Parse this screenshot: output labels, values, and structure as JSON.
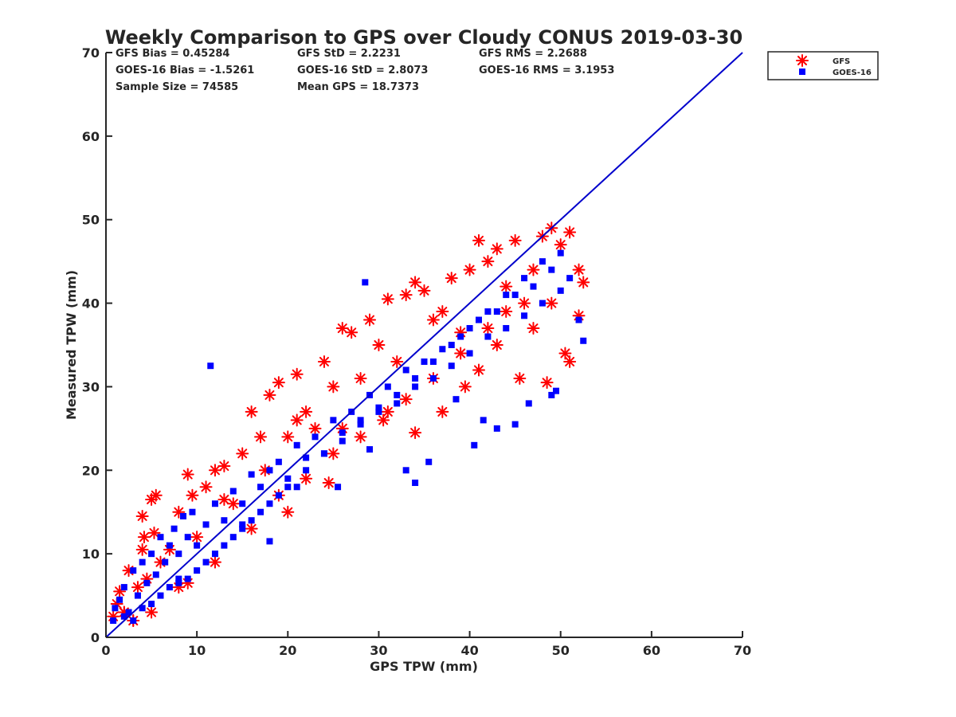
{
  "chart_data": {
    "type": "scatter",
    "title": "Weekly Comparison to GPS over Cloudy CONUS 2019-03-30",
    "xlabel": "GPS TPW (mm)",
    "ylabel": "Measured TPW (mm)",
    "xlim": [
      0,
      70
    ],
    "ylim": [
      0,
      70
    ],
    "x_ticks": [
      "0",
      "10",
      "20",
      "30",
      "40",
      "50",
      "60",
      "70"
    ],
    "y_ticks": [
      "0",
      "10",
      "20",
      "30",
      "40",
      "50",
      "60",
      "70"
    ],
    "grid": false,
    "legend_position": "outside top-right",
    "stats": [
      "GFS Bias = 0.45284",
      "GFS StD = 2.2231",
      "GFS RMS = 2.2688",
      "GOES-16 Bias = -1.5261",
      "GOES-16 StD = 2.8073",
      "GOES-16 RMS = 3.1953",
      "Sample Size = 74585",
      "Mean GPS = 18.7373"
    ],
    "reference_line": {
      "x": [
        0,
        70
      ],
      "y": [
        0,
        70
      ],
      "color": "#0000cc"
    },
    "series": [
      {
        "name": "GFS",
        "marker": "asterisk",
        "color": "#ff0000",
        "x": [
          0.8,
          1.2,
          1.5,
          2.0,
          2.5,
          3.0,
          3.5,
          4.0,
          4.2,
          4.5,
          5.0,
          5.5,
          6.0,
          7.0,
          8.0,
          9.0,
          9.5,
          10.0,
          11.0,
          12.0,
          13.0,
          14.0,
          15.0,
          16.0,
          17.0,
          18.0,
          19.0,
          20.0,
          21.0,
          22.0,
          23.0,
          24.0,
          25.0,
          26.0,
          27.0,
          28.0,
          29.0,
          30.0,
          31.0,
          32.0,
          33.0,
          34.0,
          35.0,
          36.0,
          37.0,
          38.0,
          39.0,
          40.0,
          41.0,
          42.0,
          43.0,
          44.0,
          45.0,
          46.0,
          47.0,
          48.0,
          49.0,
          50.0,
          51.0,
          52.0,
          52.5,
          3.0,
          5.0,
          8.0,
          12.0,
          16.0,
          19.0,
          22.0,
          25.0,
          28.0,
          31.0,
          33.0,
          36.0,
          39.0,
          42.0,
          44.0,
          47.0,
          49.0,
          51.0,
          13.0,
          17.5,
          20.0,
          24.5,
          30.5,
          34.0,
          37.0,
          39.5,
          45.5,
          48.5,
          50.5,
          52.0,
          43.0,
          41.0,
          2.0,
          4.0,
          5.3,
          9.0,
          21.0,
          26.0
        ],
        "y": [
          2.5,
          4.0,
          5.5,
          3.0,
          8.0,
          2.0,
          6.0,
          14.5,
          12.0,
          7.0,
          16.5,
          17.0,
          9.0,
          10.5,
          15.0,
          19.5,
          17.0,
          12.0,
          18.0,
          20.0,
          20.5,
          16.0,
          22.0,
          27.0,
          24.0,
          29.0,
          30.5,
          24.0,
          31.5,
          27.0,
          25.0,
          33.0,
          30.0,
          37.0,
          36.5,
          31.0,
          38.0,
          35.0,
          40.5,
          33.0,
          41.0,
          42.5,
          41.5,
          38.0,
          39.0,
          43.0,
          36.5,
          44.0,
          47.5,
          45.0,
          46.5,
          42.0,
          47.5,
          40.0,
          44.0,
          48.0,
          49.0,
          47.0,
          48.5,
          44.0,
          42.5,
          2.0,
          3.0,
          6.0,
          9.0,
          13.0,
          17.0,
          19.0,
          22.0,
          24.0,
          27.0,
          28.5,
          31.0,
          34.0,
          37.0,
          39.0,
          37.0,
          40.0,
          33.0,
          16.5,
          20.0,
          15.0,
          18.5,
          26.0,
          24.5,
          27.0,
          30.0,
          31.0,
          30.5,
          34.0,
          38.5,
          35.0,
          32.0,
          3.0,
          10.5,
          12.5,
          6.5,
          26.0,
          25.0
        ]
      },
      {
        "name": "GOES-16",
        "marker": "square",
        "color": "#0000ff",
        "x": [
          0.8,
          1.0,
          1.5,
          2.0,
          2.5,
          3.0,
          3.5,
          4.0,
          4.5,
          5.0,
          5.5,
          6.0,
          6.5,
          7.0,
          7.5,
          8.0,
          8.5,
          9.0,
          9.5,
          10.0,
          11.0,
          12.0,
          13.0,
          14.0,
          15.0,
          16.0,
          17.0,
          18.0,
          19.0,
          20.0,
          21.0,
          22.0,
          23.0,
          24.0,
          25.0,
          26.0,
          27.0,
          28.0,
          29.0,
          30.0,
          31.0,
          32.0,
          33.0,
          34.0,
          35.0,
          36.0,
          37.0,
          38.0,
          39.0,
          40.0,
          41.0,
          42.0,
          43.0,
          44.0,
          45.0,
          46.0,
          47.0,
          48.0,
          49.0,
          50.0,
          51.0,
          52.0,
          52.5,
          2.0,
          3.0,
          4.0,
          5.0,
          6.0,
          7.0,
          8.0,
          9.0,
          10.0,
          11.0,
          12.0,
          13.0,
          14.0,
          15.0,
          16.0,
          17.0,
          18.0,
          19.0,
          20.0,
          22.0,
          24.0,
          26.0,
          28.0,
          30.0,
          32.0,
          34.0,
          36.0,
          38.0,
          40.0,
          42.0,
          44.0,
          46.0,
          48.0,
          50.0,
          28.5,
          34.0,
          40.5,
          43.0,
          45.0,
          49.5,
          38.5,
          41.5,
          46.5,
          49.0,
          11.5,
          18.0,
          8.0,
          15.0,
          21.0,
          25.5,
          29.0,
          33.0,
          35.5
        ],
        "y": [
          2.0,
          3.5,
          4.5,
          6.0,
          3.0,
          8.0,
          5.0,
          9.0,
          6.5,
          10.0,
          7.5,
          12.0,
          9.0,
          11.0,
          13.0,
          10.0,
          14.5,
          12.0,
          15.0,
          11.0,
          13.5,
          16.0,
          14.0,
          17.5,
          16.0,
          19.5,
          18.0,
          20.0,
          21.0,
          19.0,
          23.0,
          21.5,
          24.0,
          22.0,
          26.0,
          24.5,
          27.0,
          26.0,
          29.0,
          27.5,
          30.0,
          28.0,
          32.0,
          30.0,
          33.0,
          31.0,
          34.5,
          32.5,
          36.0,
          34.0,
          38.0,
          36.0,
          39.0,
          37.0,
          41.0,
          38.5,
          42.0,
          40.0,
          44.0,
          41.5,
          43.0,
          38.0,
          35.5,
          2.5,
          2.0,
          3.5,
          4.0,
          5.0,
          6.0,
          6.5,
          7.0,
          8.0,
          9.0,
          10.0,
          11.0,
          12.0,
          13.0,
          14.0,
          15.0,
          16.0,
          17.0,
          18.0,
          20.0,
          22.0,
          23.5,
          25.5,
          27.0,
          29.0,
          31.0,
          33.0,
          35.0,
          37.0,
          39.0,
          41.0,
          43.0,
          45.0,
          46.0,
          42.5,
          18.5,
          23.0,
          25.0,
          25.5,
          29.5,
          28.5,
          26.0,
          28.0,
          29.0,
          32.5,
          11.5,
          7.0,
          13.5,
          18.0,
          18.0,
          22.5,
          20.0,
          21.0
        ]
      }
    ]
  }
}
